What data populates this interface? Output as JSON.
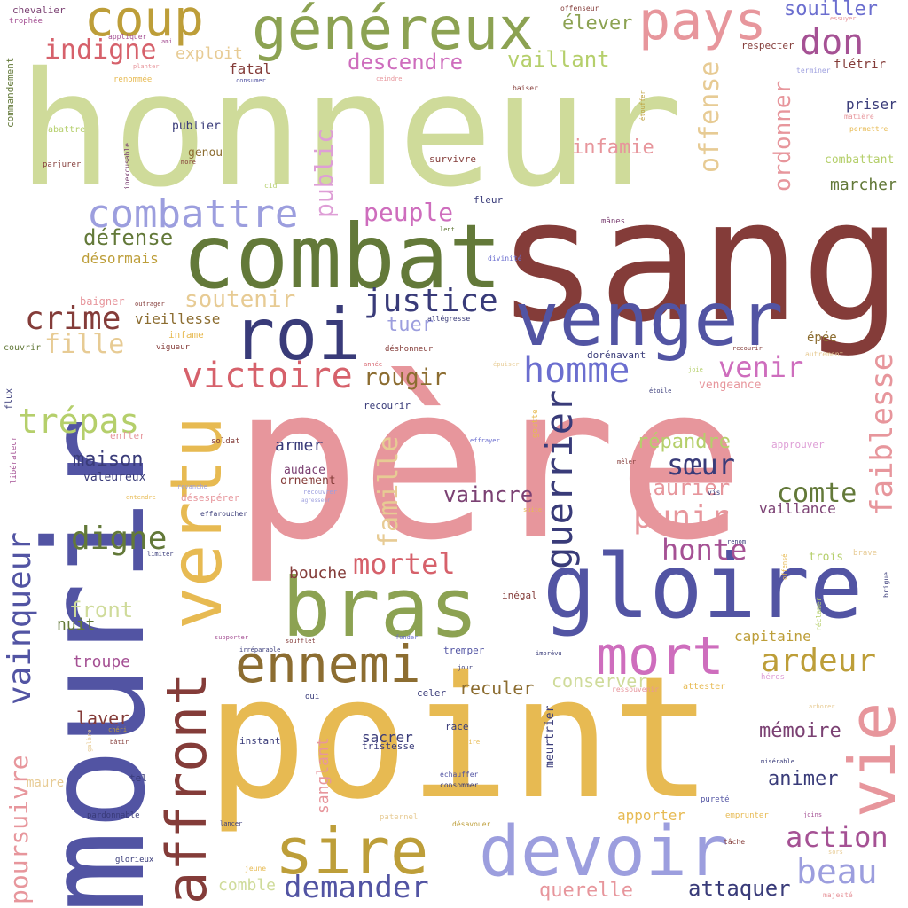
{
  "colors": {
    "lightgreen": "#cfdb9a",
    "darkred": "#843c39",
    "pink": "#e7969c",
    "indigo": "#5254a3",
    "gold": "#e7ba52",
    "olive": "#637939",
    "green": "#8ca252",
    "tan": "#bd9e39",
    "brown": "#8c6d31",
    "navy": "#393b79",
    "lavender": "#9c9ede",
    "orchid": "#ce6dbd",
    "periwinkle": "#6b6ecf",
    "rose": "#d6616b",
    "plum": "#7b4173",
    "magenta": "#a55194",
    "sand": "#e7cb94",
    "lilac": "#de9ed6",
    "lime": "#b5cf6b"
  },
  "words": [
    {
      "text": "honneur"
    },
    {
      "text": "sang"
    },
    {
      "text": "père"
    },
    {
      "text": "point"
    },
    {
      "text": "mourir"
    },
    {
      "text": "combat"
    },
    {
      "text": "venger"
    },
    {
      "text": "gloire"
    },
    {
      "text": "bras"
    },
    {
      "text": "roi"
    },
    {
      "text": "devoir"
    },
    {
      "text": "généreux"
    },
    {
      "text": "sire"
    },
    {
      "text": "affront"
    },
    {
      "text": "vertu"
    },
    {
      "text": "ennemi"
    },
    {
      "text": "mort"
    },
    {
      "text": "pays"
    },
    {
      "text": "coup"
    },
    {
      "text": "vie"
    },
    {
      "text": "combattre"
    },
    {
      "text": "guerrier"
    },
    {
      "text": "don"
    },
    {
      "text": "homme"
    },
    {
      "text": "victoire"
    },
    {
      "text": "justice"
    },
    {
      "text": "vainqueur"
    },
    {
      "text": "ardeur"
    },
    {
      "text": "faiblesse"
    },
    {
      "text": "crime"
    },
    {
      "text": "trépas"
    },
    {
      "text": "digne"
    },
    {
      "text": "beau"
    },
    {
      "text": "demander"
    },
    {
      "text": "punir"
    },
    {
      "text": "action"
    },
    {
      "text": "honte"
    },
    {
      "text": "mortel"
    },
    {
      "text": "peuple"
    },
    {
      "text": "soutenir"
    },
    {
      "text": "fille"
    },
    {
      "text": "venir"
    },
    {
      "text": "sœur"
    },
    {
      "text": "poursuivre"
    },
    {
      "text": "offense"
    },
    {
      "text": "famille"
    },
    {
      "text": "comte"
    },
    {
      "text": "public"
    },
    {
      "text": "ordonner"
    },
    {
      "text": "indigne"
    },
    {
      "text": "descendre"
    },
    {
      "text": "souiller"
    },
    {
      "text": "élever"
    },
    {
      "text": "vaillant"
    },
    {
      "text": "rougir"
    },
    {
      "text": "attaquer"
    },
    {
      "text": "défense"
    },
    {
      "text": "front"
    },
    {
      "text": "vaincre"
    },
    {
      "text": "laurier"
    },
    {
      "text": "mémoire"
    },
    {
      "text": "infamie"
    },
    {
      "text": "répandre"
    },
    {
      "text": "maison"
    },
    {
      "text": "querelle"
    },
    {
      "text": "animer"
    },
    {
      "text": "tuer"
    },
    {
      "text": "exploit"
    },
    {
      "text": "conserver"
    },
    {
      "text": "reculer"
    },
    {
      "text": "comble"
    },
    {
      "text": "laver"
    },
    {
      "text": "sanglant"
    },
    {
      "text": "sacrer"
    },
    {
      "text": "marcher"
    },
    {
      "text": "troupe"
    },
    {
      "text": "nuit"
    },
    {
      "text": "armer"
    },
    {
      "text": "bouche"
    },
    {
      "text": "vieillesse"
    },
    {
      "text": "fatal"
    },
    {
      "text": "vaillance"
    },
    {
      "text": "capitaine"
    },
    {
      "text": "apporter"
    },
    {
      "text": "désormais"
    },
    {
      "text": "audace"
    },
    {
      "text": "ornement"
    },
    {
      "text": "priser"
    },
    {
      "text": "flétrir"
    },
    {
      "text": "combattant"
    },
    {
      "text": "épée"
    },
    {
      "text": "genou"
    },
    {
      "text": "publier"
    },
    {
      "text": "vengeance"
    },
    {
      "text": "maure"
    },
    {
      "text": "trois"
    },
    {
      "text": "survivre"
    },
    {
      "text": "dorénavant"
    },
    {
      "text": "respecter"
    },
    {
      "text": "meurtrier"
    },
    {
      "text": "valeureux"
    },
    {
      "text": "infame"
    },
    {
      "text": "baigner"
    },
    {
      "text": "inégal"
    },
    {
      "text": "tremper"
    },
    {
      "text": "recourir"
    },
    {
      "text": "race"
    },
    {
      "text": "tristesse"
    },
    {
      "text": "celer"
    },
    {
      "text": "désespérer"
    },
    {
      "text": "fleur"
    },
    {
      "text": "tel"
    },
    {
      "text": "instant"
    },
    {
      "text": "commandement"
    },
    {
      "text": "abattre"
    },
    {
      "text": "chevalier"
    },
    {
      "text": "trophée"
    },
    {
      "text": "renommée"
    },
    {
      "text": "parjurer"
    },
    {
      "text": "inexcusable"
    },
    {
      "text": "baiser"
    },
    {
      "text": "offenseur"
    },
    {
      "text": "terminer"
    },
    {
      "text": "matière"
    },
    {
      "text": "permettre"
    },
    {
      "text": "étouffer"
    },
    {
      "text": "appliquer"
    },
    {
      "text": "ami"
    },
    {
      "text": "planter"
    },
    {
      "text": "consumer"
    },
    {
      "text": "ceindre"
    },
    {
      "text": "essuyer"
    },
    {
      "text": "cid"
    },
    {
      "text": "more"
    },
    {
      "text": "lent"
    },
    {
      "text": "mânes"
    },
    {
      "text": "divinité"
    },
    {
      "text": "outrager"
    },
    {
      "text": "allégresse"
    },
    {
      "text": "couvrir"
    },
    {
      "text": "vigueur"
    },
    {
      "text": "déshonneur"
    },
    {
      "text": "année"
    },
    {
      "text": "épuiser"
    },
    {
      "text": "joie"
    },
    {
      "text": "recourir"
    },
    {
      "text": "autrement"
    },
    {
      "text": "étoile"
    },
    {
      "text": "goutte"
    },
    {
      "text": "flux"
    },
    {
      "text": "libérateur"
    },
    {
      "text": "enfler"
    },
    {
      "text": "soldat"
    },
    {
      "text": "effrayer"
    },
    {
      "text": "approuver"
    },
    {
      "text": "mêler"
    },
    {
      "text": "revanche"
    },
    {
      "text": "recouvrer"
    },
    {
      "text": "agresseur"
    },
    {
      "text": "entendre"
    },
    {
      "text": "effaroucher"
    },
    {
      "text": "suite"
    },
    {
      "text": "vis"
    },
    {
      "text": "renom"
    },
    {
      "text": "brigue"
    },
    {
      "text": "brave"
    },
    {
      "text": "offensé"
    },
    {
      "text": "limiter"
    },
    {
      "text": "réclamer"
    },
    {
      "text": "supporter"
    },
    {
      "text": "soufflet"
    },
    {
      "text": "fonder"
    },
    {
      "text": "irréparable"
    },
    {
      "text": "imprévu"
    },
    {
      "text": "jour"
    },
    {
      "text": "héros"
    },
    {
      "text": "ressouvenir"
    },
    {
      "text": "attester"
    },
    {
      "text": "arborer"
    },
    {
      "text": "chéri"
    },
    {
      "text": "bâtir"
    },
    {
      "text": "galère"
    },
    {
      "text": "cuire"
    },
    {
      "text": "oui"
    },
    {
      "text": "échauffer"
    },
    {
      "text": "consommer"
    },
    {
      "text": "misérable"
    },
    {
      "text": "pureté"
    },
    {
      "text": "emprunter"
    },
    {
      "text": "joins"
    },
    {
      "text": "pardonnable"
    },
    {
      "text": "glorieux"
    },
    {
      "text": "lancer"
    },
    {
      "text": "paternel"
    },
    {
      "text": "désavouer"
    },
    {
      "text": "tâche"
    },
    {
      "text": "sors"
    },
    {
      "text": "jeune"
    },
    {
      "text": "majesté"
    }
  ]
}
